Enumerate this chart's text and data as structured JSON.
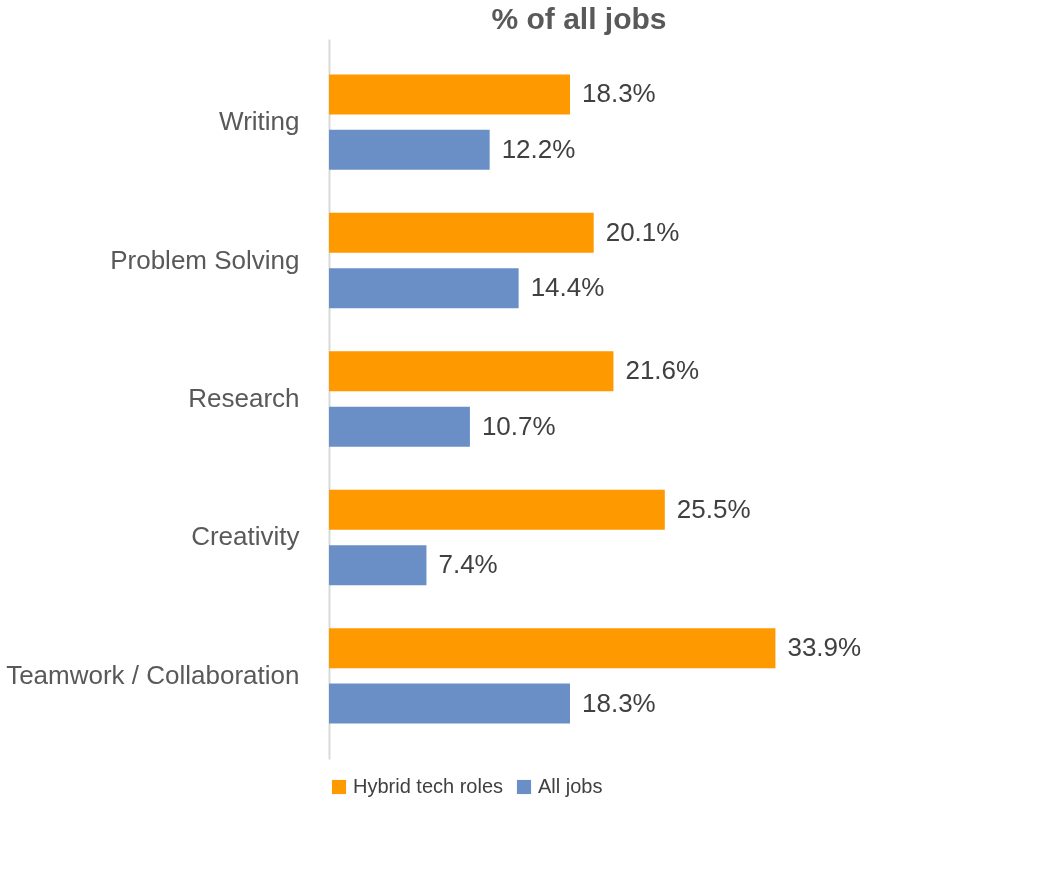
{
  "chart_data": {
    "type": "bar",
    "title": "% of all jobs",
    "orientation": "horizontal",
    "categories": [
      "Writing",
      "Problem Solving",
      "Research",
      "Creativity",
      "Teamwork / Collaboration"
    ],
    "series": [
      {
        "name": "Hybrid tech roles",
        "color": "#ff9900",
        "values": [
          18.3,
          20.1,
          21.6,
          25.5,
          33.9
        ],
        "value_labels": [
          "18.3%",
          "20.1%",
          "21.6%",
          "25.5%",
          "33.9%"
        ]
      },
      {
        "name": "All jobs",
        "color": "#6a8fc7",
        "values": [
          12.2,
          14.4,
          10.7,
          7.4,
          18.3
        ],
        "value_labels": [
          "12.2%",
          "14.4%",
          "10.7%",
          "7.4%",
          "18.3%"
        ]
      }
    ],
    "legend": "bottom",
    "grid": false
  }
}
